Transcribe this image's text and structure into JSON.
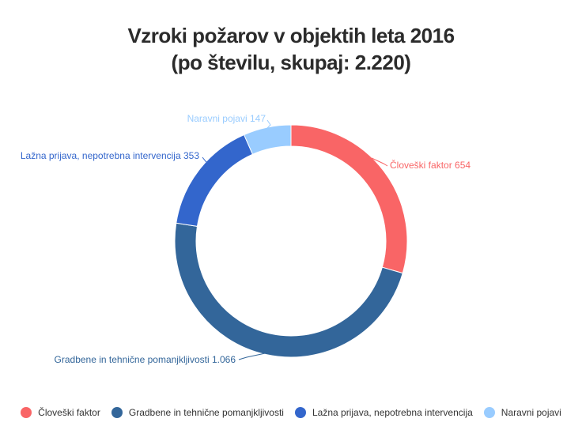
{
  "chart_data": {
    "type": "pie",
    "title": "Vzroki požarov v objektih leta 2016",
    "subtitle": "(po številu, skupaj: 2.220)",
    "series": [
      {
        "name": "Človeški faktor",
        "value": 654,
        "color": "#f96566"
      },
      {
        "name": "Gradbene in tehnične pomanjkljivosti",
        "value": 1066,
        "color": "#33669a"
      },
      {
        "name": "Lažna prijava, nepotrebna intervencija",
        "value": 353,
        "color": "#3366cc"
      },
      {
        "name": "Naravni pojavi",
        "value": 147,
        "color": "#99ccff"
      }
    ],
    "data_labels": [
      "Človeški faktor 654",
      "Gradbene in tehnične pomanjkljivosti 1.066",
      "Lažna prijava, nepotrebna intervencija 353",
      "Naravni pojavi 147"
    ],
    "legend_position": "bottom"
  }
}
